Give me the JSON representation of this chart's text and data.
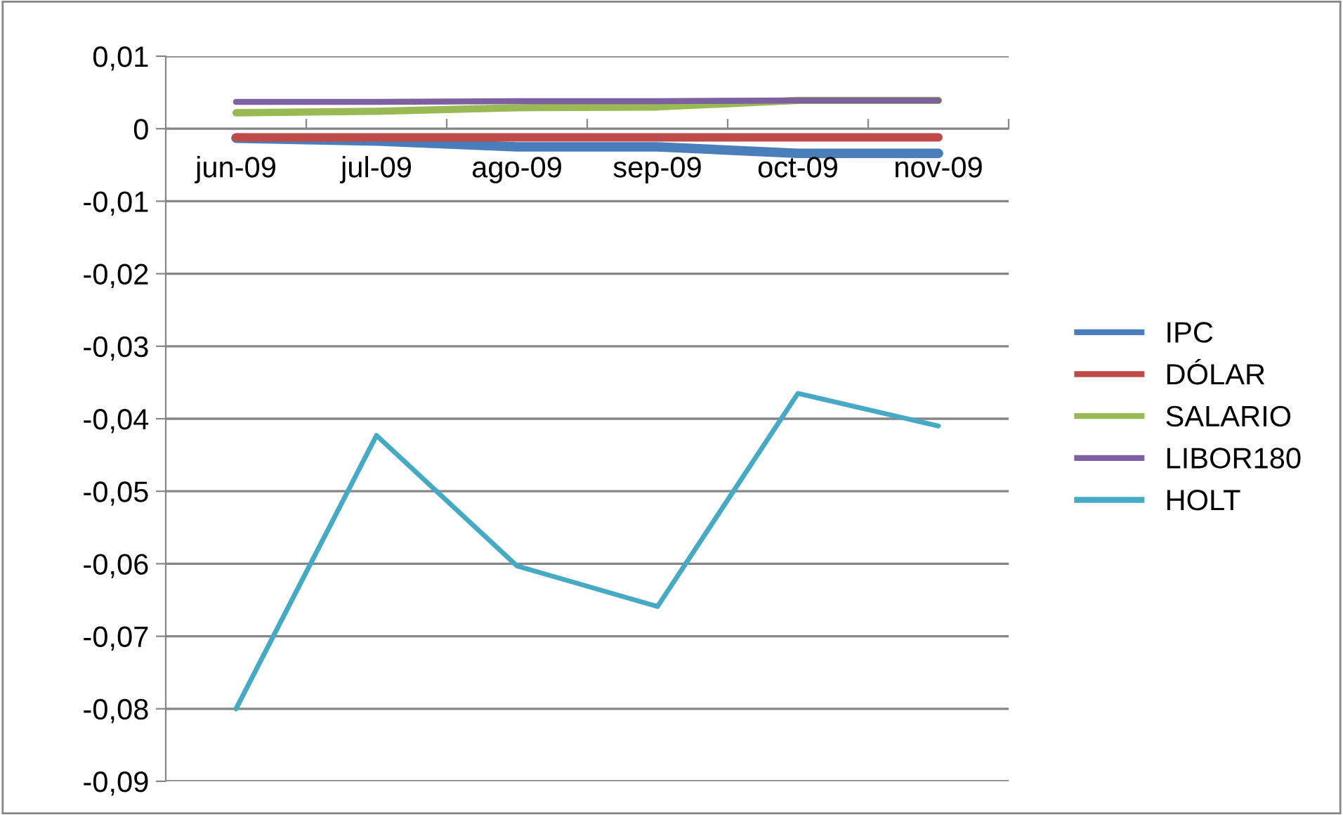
{
  "chart_data": {
    "type": "line",
    "categories": [
      "jun-09",
      "jul-09",
      "ago-09",
      "sep-09",
      "oct-09",
      "nov-09"
    ],
    "series": [
      {
        "name": "IPC",
        "color": "#4a7ebb",
        "values": [
          -0.0013,
          -0.0017,
          -0.0025,
          -0.0025,
          -0.0034,
          -0.0034
        ]
      },
      {
        "name": "DÓLAR",
        "color": "#be4b48",
        "values": [
          -0.0012,
          -0.0012,
          -0.0012,
          -0.0012,
          -0.0012,
          -0.0012
        ]
      },
      {
        "name": "SALARIO",
        "color": "#98b954",
        "values": [
          0.0022,
          0.0024,
          0.0029,
          0.003,
          0.0039,
          0.0039
        ]
      },
      {
        "name": "LIBOR180",
        "color": "#7d60a0",
        "values": [
          0.0037,
          0.0037,
          0.0038,
          0.0038,
          0.0039,
          0.0039
        ]
      },
      {
        "name": "HOLT",
        "color": "#46aac5",
        "values": [
          -0.08,
          -0.0423,
          -0.0603,
          -0.0659,
          -0.0365,
          -0.041
        ]
      }
    ],
    "ylim": [
      -0.09,
      0.01
    ],
    "yticks": [
      {
        "value": 0.01,
        "label": "0,01"
      },
      {
        "value": 0,
        "label": "0"
      },
      {
        "value": -0.01,
        "label": "-0,01"
      },
      {
        "value": -0.02,
        "label": "-0,02"
      },
      {
        "value": -0.03,
        "label": "-0,03"
      },
      {
        "value": -0.04,
        "label": "-0,04"
      },
      {
        "value": -0.05,
        "label": "-0,05"
      },
      {
        "value": -0.06,
        "label": "-0,06"
      },
      {
        "value": -0.07,
        "label": "-0,07"
      },
      {
        "value": -0.08,
        "label": "-0,08"
      },
      {
        "value": -0.09,
        "label": "-0,09"
      }
    ],
    "grid": "y",
    "legend": "right",
    "marker": "none",
    "line_style": "solid"
  }
}
